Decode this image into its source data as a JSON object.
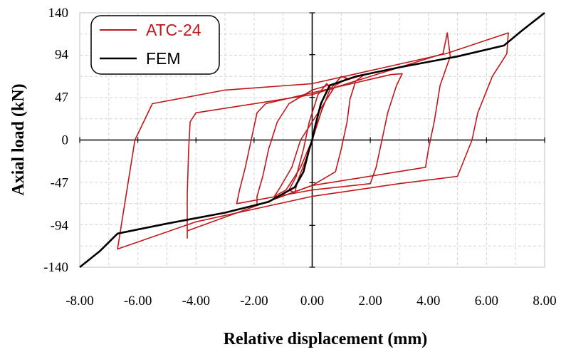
{
  "chart_data": {
    "type": "line",
    "xlabel": "Relative displacement (mm)",
    "ylabel": "Axial load (kN)",
    "xlim": [
      -8,
      8
    ],
    "ylim": [
      -140,
      140
    ],
    "x_ticks": [
      "-8.00",
      "-6.00",
      "-4.00",
      "-2.00",
      "0.00",
      "2.00",
      "4.00",
      "6.00",
      "8.00"
    ],
    "y_ticks": [
      "140",
      "94",
      "47",
      "0",
      "-47",
      "-94",
      "-140"
    ],
    "y_tick_values": [
      140,
      94,
      47,
      0,
      -47,
      -94,
      -140
    ],
    "grid": "dashed",
    "legend_position": "top-left",
    "series": [
      {
        "name": "ATC-24",
        "color": "#c0171b",
        "loops": [
          [
            [
              -0.5,
              -45
            ],
            [
              -0.2,
              -20
            ],
            [
              0.1,
              10
            ],
            [
              0.4,
              40
            ],
            [
              0.7,
              55
            ],
            [
              0.5,
              62
            ],
            [
              0.2,
              50
            ],
            [
              -0.1,
              20
            ],
            [
              -0.3,
              -10
            ],
            [
              -0.55,
              -40
            ],
            [
              -0.8,
              -55
            ],
            [
              -0.6,
              -58
            ],
            [
              -0.5,
              -45
            ]
          ],
          [
            [
              -1.1,
              -52
            ],
            [
              -0.7,
              -30
            ],
            [
              -0.4,
              0
            ],
            [
              0.2,
              30
            ],
            [
              0.8,
              60
            ],
            [
              1.2,
              68
            ],
            [
              1.0,
              70
            ],
            [
              0.6,
              55
            ],
            [
              0.3,
              30
            ],
            [
              0.0,
              0
            ],
            [
              -0.4,
              -30
            ],
            [
              -0.9,
              -55
            ],
            [
              -1.3,
              -62
            ],
            [
              -1.1,
              -52
            ]
          ],
          [
            [
              -1.9,
              -62
            ],
            [
              -1.7,
              -40
            ],
            [
              -1.5,
              -10
            ],
            [
              -1.2,
              20
            ],
            [
              -0.8,
              40
            ],
            [
              0.0,
              55
            ],
            [
              1.8,
              72
            ],
            [
              1.5,
              65
            ],
            [
              1.3,
              45
            ],
            [
              1.2,
              20
            ],
            [
              1.0,
              -10
            ],
            [
              0.8,
              -35
            ],
            [
              0.0,
              -50
            ],
            [
              -1.9,
              -72
            ],
            [
              -1.9,
              -62
            ]
          ],
          [
            [
              -2.5,
              -55
            ],
            [
              -2.3,
              -30
            ],
            [
              -2.1,
              0
            ],
            [
              -1.9,
              30
            ],
            [
              -1.6,
              40
            ],
            [
              0.0,
              52
            ],
            [
              2.7,
              72
            ],
            [
              3.1,
              73
            ],
            [
              2.9,
              60
            ],
            [
              2.6,
              30
            ],
            [
              2.4,
              0
            ],
            [
              2.2,
              -30
            ],
            [
              2.0,
              -48
            ],
            [
              0.0,
              -55
            ],
            [
              -2.6,
              -70
            ],
            [
              -2.5,
              -55
            ]
          ],
          [
            [
              -4.3,
              -108
            ],
            [
              -4.3,
              -60
            ],
            [
              -4.25,
              -10
            ],
            [
              -4.2,
              20
            ],
            [
              -4.0,
              30
            ],
            [
              0.0,
              50
            ],
            [
              4.5,
              95
            ],
            [
              4.65,
              118
            ],
            [
              4.75,
              92
            ],
            [
              4.4,
              60
            ],
            [
              4.2,
              20
            ],
            [
              4.0,
              -10
            ],
            [
              3.9,
              -30
            ],
            [
              0.0,
              -50
            ],
            [
              -4.3,
              -100
            ],
            [
              -4.3,
              -108
            ]
          ],
          [
            [
              -6.7,
              -120
            ],
            [
              -6.5,
              -80
            ],
            [
              -6.1,
              0
            ],
            [
              -5.5,
              40
            ],
            [
              -3.0,
              55
            ],
            [
              0.0,
              62
            ],
            [
              4.6,
              95
            ],
            [
              6.75,
              118
            ],
            [
              6.7,
              95
            ],
            [
              6.2,
              70
            ],
            [
              5.7,
              30
            ],
            [
              5.5,
              0
            ],
            [
              5.0,
              -40
            ],
            [
              3.0,
              -48
            ],
            [
              0.0,
              -62
            ],
            [
              -4.0,
              -90
            ],
            [
              -6.7,
              -120
            ]
          ]
        ]
      },
      {
        "name": "FEM",
        "color": "#000000",
        "x": [
          -8.0,
          -7.3,
          -6.7,
          -5.0,
          -3.0,
          -1.5,
          -0.6,
          -0.3,
          -0.1,
          0.0,
          0.1,
          0.3,
          0.6,
          1.5,
          3.0,
          5.0,
          6.6,
          7.2,
          8.0
        ],
        "y": [
          -140,
          -122,
          -103,
          -92,
          -80,
          -68,
          -52,
          -35,
          -10,
          0,
          15,
          40,
          60,
          70,
          80,
          92,
          104,
          120,
          140
        ]
      }
    ]
  }
}
